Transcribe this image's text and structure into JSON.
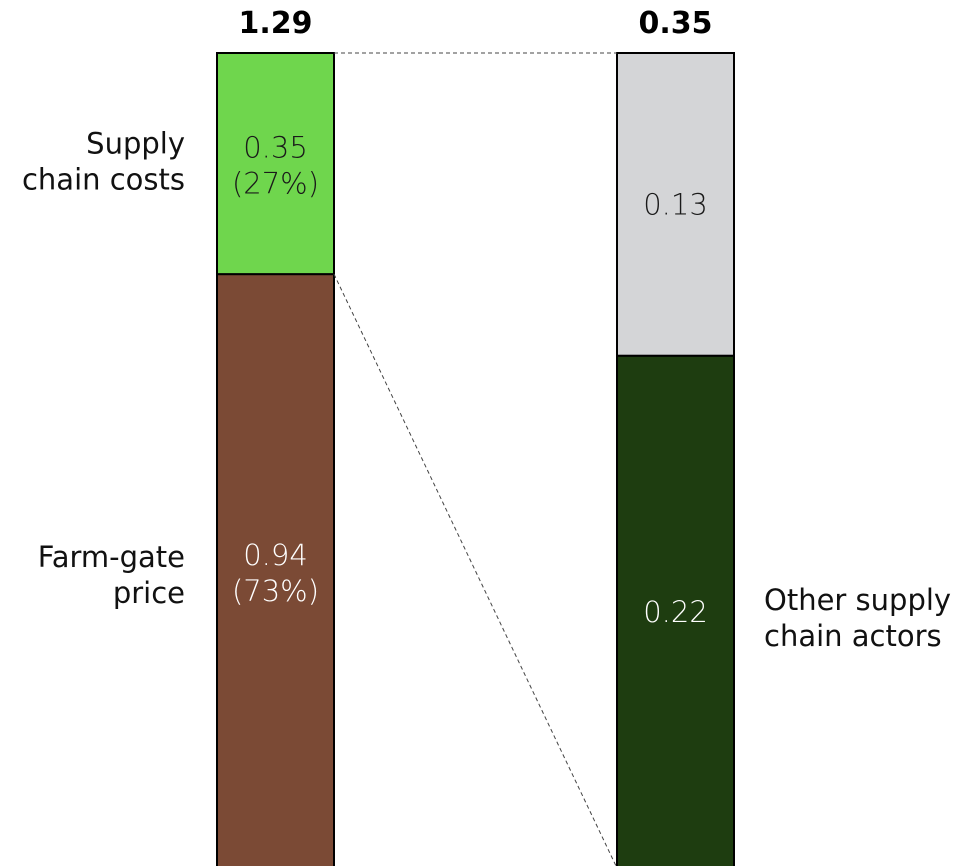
{
  "chart_data": {
    "type": "bar",
    "stacked": true,
    "bars": [
      {
        "total_label": "1.29",
        "total": 1.29,
        "segments": [
          {
            "name": "Farm-gate price",
            "side_label": [
              "Farm-gate",
              "price"
            ],
            "value": 0.94,
            "value_label": "0.94",
            "pct_label": "(73%)",
            "color": "#7b4a35",
            "text_color": "#ffffff"
          },
          {
            "name": "Supply chain costs",
            "side_label": [
              "Supply",
              "chain costs"
            ],
            "value": 0.35,
            "value_label": "0.35",
            "pct_label": "(27%)",
            "color": "#6fd64d",
            "text_color": "#1a1a1a"
          }
        ]
      },
      {
        "total_label": "0.35",
        "total": 0.35,
        "segments": [
          {
            "name": "Other supply chain actors",
            "side_label": [
              "Other supply",
              "chain actors"
            ],
            "value": 0.22,
            "value_label": "0.22",
            "pct_label": "",
            "color": "#1e3d10",
            "text_color": "#ffffff"
          },
          {
            "name": "",
            "side_label": [],
            "value": 0.13,
            "value_label": "0.13",
            "pct_label": "",
            "color": "#d4d5d7",
            "text_color": "#1a1a1a"
          }
        ]
      }
    ],
    "connector": {
      "from_bar": 0,
      "from_segment": 1,
      "to_bar": 1,
      "style": "dashed"
    }
  }
}
